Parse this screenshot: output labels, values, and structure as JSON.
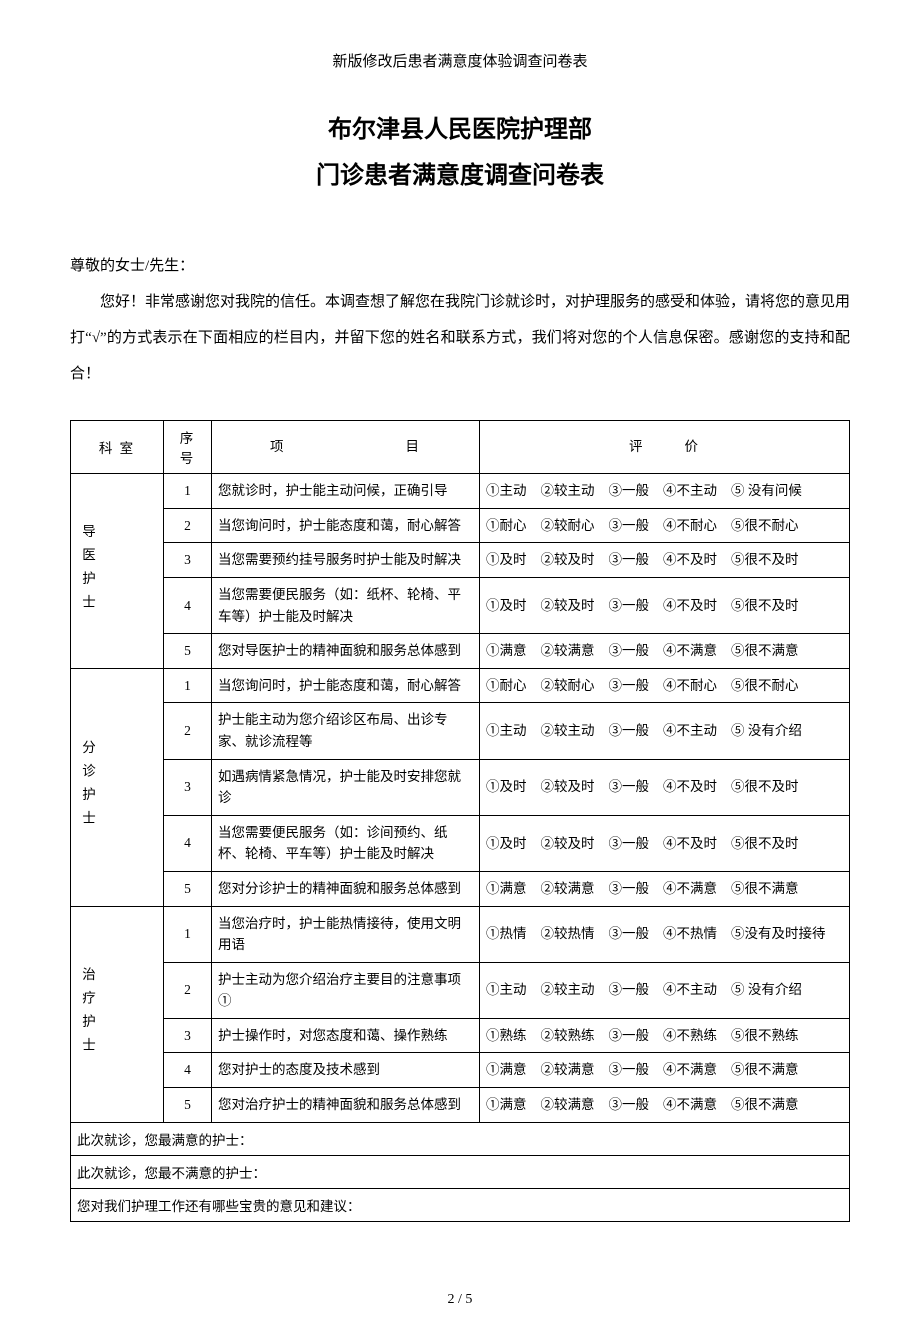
{
  "doc_header": "新版修改后患者满意度体验调查问卷表",
  "title_line1": "布尔津县人民医院护理部",
  "title_line2": "门诊患者满意度调查问卷表",
  "salutation": "尊敬的女士/先生：",
  "intro_body": "您好！非常感谢您对我院的信任。本调查想了解您在我院门诊就诊时，对护理服务的感受和体验，请将您的意见用打“√”的方式表示在下面相应的栏目内，并留下您的姓名和联系方式，我们将对您的个人信息保密。感谢您的支持和配合！",
  "headers": {
    "dept": "科 室",
    "seq": "序 号",
    "item_left": "项",
    "item_right": "目",
    "eval_left": "评",
    "eval_right": "价"
  },
  "sections": [
    {
      "dept": "导医护士",
      "rows": [
        {
          "seq": "1",
          "item": "您就诊时，护士能主动问候，正确引导",
          "opts": [
            "①主动",
            "②较主动",
            "③一般",
            "④不主动",
            "⑤ 没有问候"
          ]
        },
        {
          "seq": "2",
          "item": "当您询问时，护士能态度和蔼，耐心解答",
          "opts": [
            "①耐心",
            "②较耐心",
            "③一般",
            "④不耐心",
            "⑤很不耐心"
          ]
        },
        {
          "seq": "3",
          "item": "当您需要预约挂号服务时护士能及时解决",
          "opts": [
            "①及时",
            "②较及时",
            "③一般",
            "④不及时",
            "⑤很不及时"
          ]
        },
        {
          "seq": "4",
          "item": "当您需要便民服务（如：纸杯、轮椅、平车等）护士能及时解决",
          "opts": [
            "①及时",
            "②较及时",
            "③一般",
            "④不及时",
            "⑤很不及时"
          ]
        },
        {
          "seq": "5",
          "item": "您对导医护士的精神面貌和服务总体感到",
          "opts": [
            "①满意",
            "②较满意",
            "③一般",
            "④不满意",
            "⑤很不满意"
          ]
        }
      ]
    },
    {
      "dept": "分诊护士",
      "rows": [
        {
          "seq": "1",
          "item": "当您询问时，护士能态度和蔼，耐心解答",
          "opts": [
            "①耐心",
            "②较耐心",
            "③一般",
            "④不耐心",
            "⑤很不耐心"
          ]
        },
        {
          "seq": "2",
          "item": "护士能主动为您介绍诊区布局、出诊专家、就诊流程等",
          "opts": [
            "①主动",
            "②较主动",
            "③一般",
            "④不主动",
            "⑤ 没有介绍"
          ]
        },
        {
          "seq": "3",
          "item": "如遇病情紧急情况，护士能及时安排您就诊",
          "opts": [
            "①及时",
            "②较及时",
            "③一般",
            "④不及时",
            "⑤很不及时"
          ]
        },
        {
          "seq": "4",
          "item": "当您需要便民服务（如：诊间预约、纸杯、轮椅、平车等）护士能及时解决",
          "opts": [
            "①及时",
            "②较及时",
            "③一般",
            "④不及时",
            "⑤很不及时"
          ]
        },
        {
          "seq": "5",
          "item": "您对分诊护士的精神面貌和服务总体感到",
          "opts": [
            "①满意",
            "②较满意",
            "③一般",
            "④不满意",
            "⑤很不满意"
          ]
        }
      ]
    },
    {
      "dept": "治疗护士",
      "rows": [
        {
          "seq": "1",
          "item": "当您治疗时，护士能热情接待，使用文明用语",
          "opts": [
            "①热情",
            "②较热情",
            "③一般",
            "④不热情",
            "⑤没有及时接待"
          ]
        },
        {
          "seq": "2",
          "item": "护士主动为您介绍治疗主要目的注意事项　①",
          "opts": [
            "①主动",
            "②较主动",
            "③一般",
            "④不主动",
            "⑤ 没有介绍"
          ]
        },
        {
          "seq": "3",
          "item": "护士操作时，对您态度和蔼、操作熟练",
          "opts": [
            "①熟练",
            "②较熟练",
            "③一般",
            "④不熟练",
            "⑤很不熟练"
          ]
        },
        {
          "seq": "4",
          "item": "您对护士的态度及技术感到",
          "opts": [
            "①满意",
            "②较满意",
            "③一般",
            "④不满意",
            "⑤很不满意"
          ]
        },
        {
          "seq": "5",
          "item": "您对治疗护士的精神面貌和服务总体感到",
          "opts": [
            "①满意",
            "②较满意",
            "③一般",
            "④不满意",
            "⑤很不满意"
          ]
        }
      ]
    }
  ],
  "free_rows": [
    "此次就诊，您最满意的护士：",
    "此次就诊，您最不满意的护士：",
    "您对我们护理工作还有哪些宝贵的意见和建议："
  ],
  "pager": "2 / 5"
}
